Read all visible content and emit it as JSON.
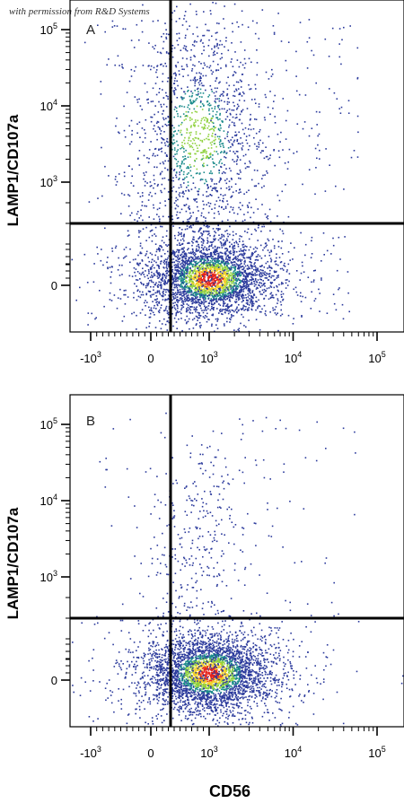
{
  "credit": "with permission from R&D Systems",
  "colors": {
    "low": "#2b3a9c",
    "mid": "#1a8a8a",
    "high_mid": "#8fd13f",
    "high": "#f2d02a",
    "peak": "#e5231b",
    "axis": "#000000"
  },
  "chart_data": [
    {
      "type": "scatter",
      "panel_label": "A",
      "xlabel": "CD56",
      "ylabel": "LAMP1/CD107a",
      "x_scale": "biexponential",
      "y_scale": "biexponential",
      "x_ticks": [
        {
          "base": "-10",
          "exp": "3",
          "value": -1000
        },
        {
          "base": "0",
          "exp": "",
          "value": 0
        },
        {
          "base": "10",
          "exp": "3",
          "value": 1000
        },
        {
          "base": "10",
          "exp": "4",
          "value": 10000
        },
        {
          "base": "10",
          "exp": "5",
          "value": 100000
        }
      ],
      "y_ticks": [
        {
          "base": "0",
          "exp": "",
          "value": 0
        },
        {
          "base": "10",
          "exp": "3",
          "value": 1000
        },
        {
          "base": "10",
          "exp": "4",
          "value": 10000
        },
        {
          "base": "10",
          "exp": "5",
          "value": 100000
        }
      ],
      "quadrant_gate": {
        "x": 200,
        "y": 300
      },
      "populations": [
        {
          "center": [
            1000,
            0
          ],
          "spread": "dense",
          "density": "high"
        },
        {
          "center": [
            800,
            5000
          ],
          "spread": "vertical",
          "density": "medium"
        }
      ],
      "grid": false
    },
    {
      "type": "scatter",
      "panel_label": "B",
      "xlabel": "CD56",
      "ylabel": "LAMP1/CD107a",
      "x_scale": "biexponential",
      "y_scale": "biexponential",
      "x_ticks": [
        {
          "base": "-10",
          "exp": "3",
          "value": -1000
        },
        {
          "base": "0",
          "exp": "",
          "value": 0
        },
        {
          "base": "10",
          "exp": "3",
          "value": 1000
        },
        {
          "base": "10",
          "exp": "4",
          "value": 10000
        },
        {
          "base": "10",
          "exp": "5",
          "value": 100000
        }
      ],
      "y_ticks": [
        {
          "base": "0",
          "exp": "",
          "value": 0
        },
        {
          "base": "10",
          "exp": "3",
          "value": 1000
        },
        {
          "base": "10",
          "exp": "4",
          "value": 10000
        },
        {
          "base": "10",
          "exp": "5",
          "value": 100000
        }
      ],
      "quadrant_gate": {
        "x": 200,
        "y": 300
      },
      "populations": [
        {
          "center": [
            1000,
            0
          ],
          "spread": "dense",
          "density": "high"
        },
        {
          "center": [
            800,
            3000
          ],
          "spread": "sparse",
          "density": "low"
        }
      ],
      "grid": false
    }
  ]
}
